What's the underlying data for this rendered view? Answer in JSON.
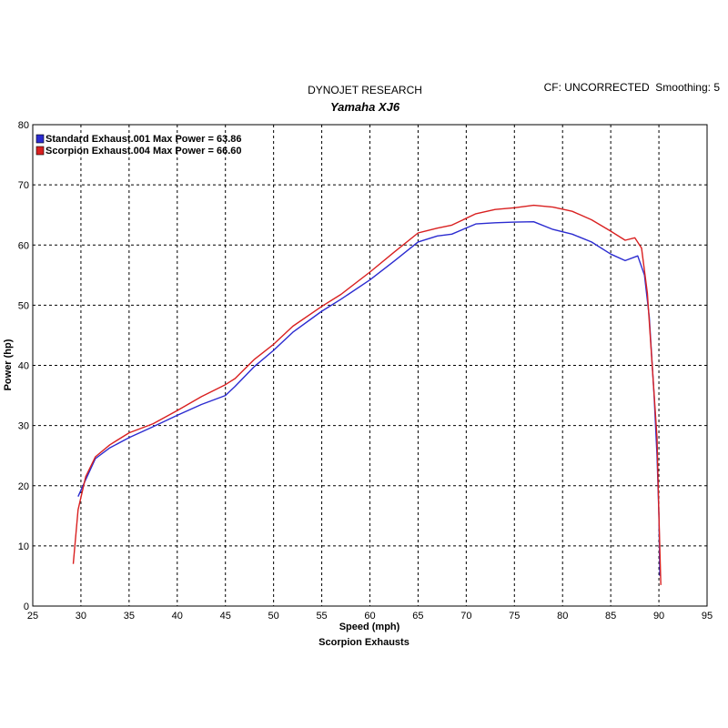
{
  "header": {
    "title": "DYNOJET RESEARCH",
    "subtitle": "Yamaha XJ6",
    "info": "CF: UNCORRECTED  Smoothing: 5"
  },
  "footer": "Scorpion Exhausts",
  "chart_data": {
    "type": "line",
    "title": "DYNOJET RESEARCH",
    "subtitle": "Yamaha XJ6",
    "xlabel": "Speed (mph)",
    "ylabel": "Power (hp)",
    "xlim": [
      25,
      95
    ],
    "ylim": [
      0,
      80
    ],
    "x_ticks": [
      25,
      30,
      35,
      40,
      45,
      50,
      55,
      60,
      65,
      70,
      75,
      80,
      85,
      90,
      95
    ],
    "y_ticks": [
      0,
      10,
      20,
      30,
      40,
      50,
      60,
      70,
      80
    ],
    "grid": true,
    "legend_position": "top-left",
    "series": [
      {
        "name": "Standard Exhaust.001 Max Power = 63.86",
        "color": "#2b2bd0",
        "points": [
          [
            29.7,
            18.2
          ],
          [
            30.5,
            21.0
          ],
          [
            31.5,
            24.5
          ],
          [
            33,
            26.3
          ],
          [
            35,
            28.0
          ],
          [
            37.5,
            29.8
          ],
          [
            40,
            31.7
          ],
          [
            42.5,
            33.5
          ],
          [
            45,
            35.0
          ],
          [
            46,
            36.5
          ],
          [
            48,
            39.8
          ],
          [
            50,
            42.5
          ],
          [
            52,
            45.5
          ],
          [
            55,
            49.0
          ],
          [
            57,
            51.0
          ],
          [
            60,
            54.2
          ],
          [
            62.5,
            57.3
          ],
          [
            65,
            60.5
          ],
          [
            67,
            61.5
          ],
          [
            68.5,
            61.8
          ],
          [
            71,
            63.5
          ],
          [
            73,
            63.7
          ],
          [
            75,
            63.8
          ],
          [
            77,
            63.86
          ],
          [
            79,
            62.6
          ],
          [
            81,
            61.8
          ],
          [
            83,
            60.5
          ],
          [
            85,
            58.5
          ],
          [
            86.5,
            57.4
          ],
          [
            87.8,
            58.2
          ],
          [
            88.5,
            55.0
          ],
          [
            89.0,
            48.0
          ],
          [
            89.5,
            35.0
          ],
          [
            89.8,
            25.0
          ],
          [
            90.0,
            15.0
          ],
          [
            90.1,
            5.0
          ]
        ]
      },
      {
        "name": "Scorpion Exhaust.004 Max Power = 66.60",
        "color": "#d92020",
        "points": [
          [
            29.2,
            7.0
          ],
          [
            29.7,
            16.0
          ],
          [
            30.5,
            21.5
          ],
          [
            31.5,
            24.8
          ],
          [
            33,
            26.8
          ],
          [
            35,
            28.8
          ],
          [
            37.5,
            30.3
          ],
          [
            40,
            32.5
          ],
          [
            42.5,
            34.8
          ],
          [
            45,
            36.8
          ],
          [
            46,
            37.8
          ],
          [
            48,
            41.0
          ],
          [
            50,
            43.5
          ],
          [
            52,
            46.5
          ],
          [
            55,
            49.8
          ],
          [
            57,
            51.8
          ],
          [
            60,
            55.5
          ],
          [
            62.5,
            58.8
          ],
          [
            65,
            62.0
          ],
          [
            67,
            62.8
          ],
          [
            68.5,
            63.3
          ],
          [
            71,
            65.2
          ],
          [
            73,
            65.9
          ],
          [
            75,
            66.2
          ],
          [
            77,
            66.6
          ],
          [
            79,
            66.3
          ],
          [
            81,
            65.6
          ],
          [
            83,
            64.2
          ],
          [
            85,
            62.3
          ],
          [
            86.5,
            60.8
          ],
          [
            87.5,
            61.2
          ],
          [
            88.2,
            59.5
          ],
          [
            88.8,
            52.0
          ],
          [
            89.3,
            40.0
          ],
          [
            89.8,
            28.0
          ],
          [
            90.0,
            15.0
          ],
          [
            90.2,
            3.5
          ]
        ]
      }
    ]
  }
}
